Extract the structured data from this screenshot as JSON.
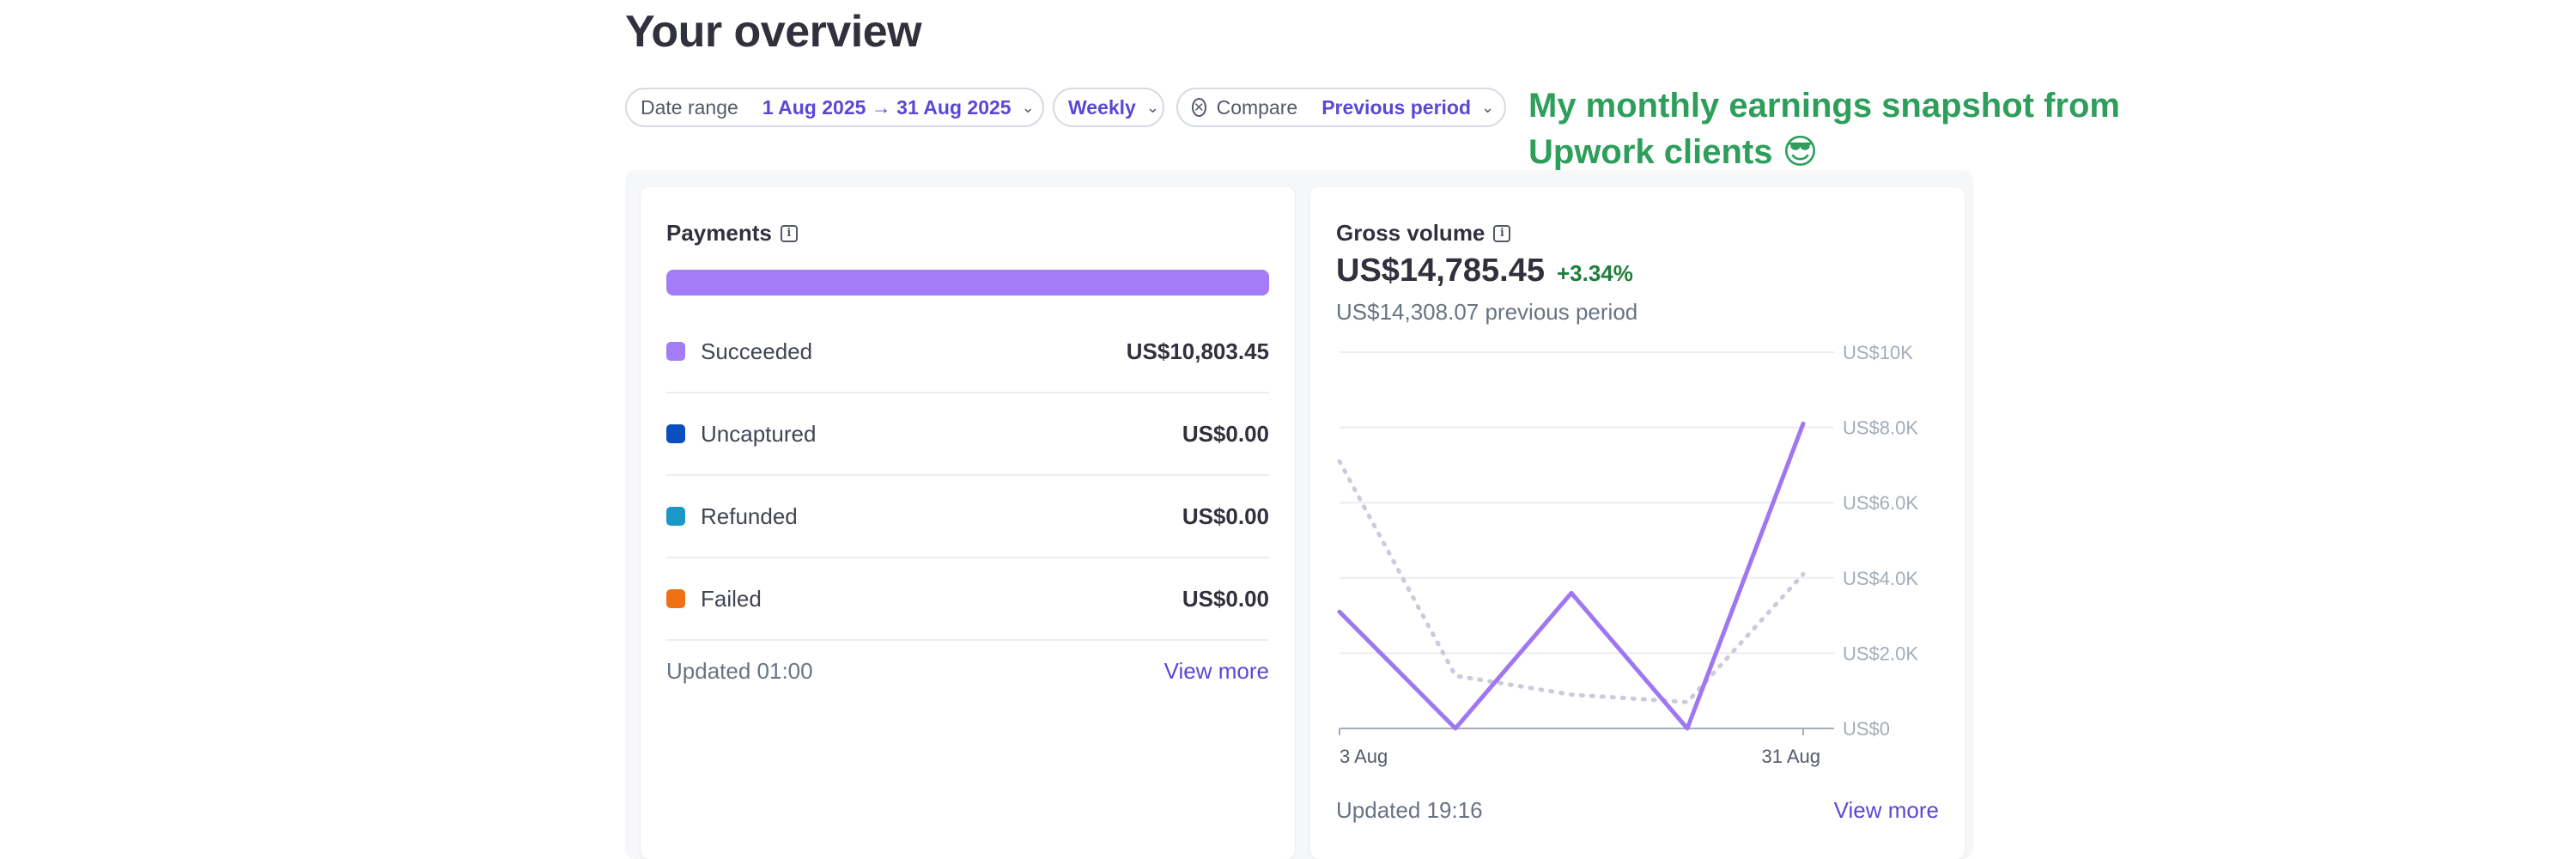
{
  "header": {
    "title": "Your overview"
  },
  "filters": {
    "date_range_label": "Date range",
    "date_range_value": "1 Aug 2025 → 31 Aug 2025",
    "interval_value": "Weekly",
    "compare_label": "Compare",
    "compare_value": "Previous period"
  },
  "annotation": {
    "text": "My monthly earnings snapshot from Upwork clients 😎"
  },
  "payments": {
    "title": "Payments",
    "rows": [
      {
        "label": "Succeeded",
        "amount": "US$10,803.45",
        "color": "#a57cf7"
      },
      {
        "label": "Uncaptured",
        "amount": "US$0.00",
        "color": "#0b4fbf"
      },
      {
        "label": "Refunded",
        "amount": "US$0.00",
        "color": "#1a98c7"
      },
      {
        "label": "Failed",
        "amount": "US$0.00",
        "color": "#ef7114"
      }
    ],
    "updated": "Updated 01:00",
    "view_more": "View more"
  },
  "gross": {
    "title": "Gross volume",
    "amount": "US$14,785.45",
    "change": "+3.34%",
    "previous": "US$14,308.07 previous period",
    "updated": "Updated 19:16",
    "view_more": "View more"
  },
  "chart_data": {
    "type": "line",
    "x_start_label": "3 Aug",
    "x_end_label": "31 Aug",
    "ylim": [
      0,
      10000
    ],
    "y_ticks": [
      {
        "value": 0,
        "label": "US$0"
      },
      {
        "value": 2000,
        "label": "US$2.0K"
      },
      {
        "value": 4000,
        "label": "US$4.0K"
      },
      {
        "value": 6000,
        "label": "US$6.0K"
      },
      {
        "value": 8000,
        "label": "US$8.0K"
      },
      {
        "value": 10000,
        "label": "US$10K"
      }
    ],
    "grid": true,
    "series": [
      {
        "values": [
          3100,
          0,
          3600,
          0,
          8100
        ],
        "color": "#9f77f0",
        "style": "solid"
      },
      {
        "values": [
          7100,
          1400,
          900,
          700,
          4100
        ],
        "color": "#cfc9dc",
        "style": "dotted"
      }
    ]
  },
  "colors": {
    "accent": "#5b47d6",
    "positive": "#217d3c",
    "annotation": "#2e9e5b"
  }
}
